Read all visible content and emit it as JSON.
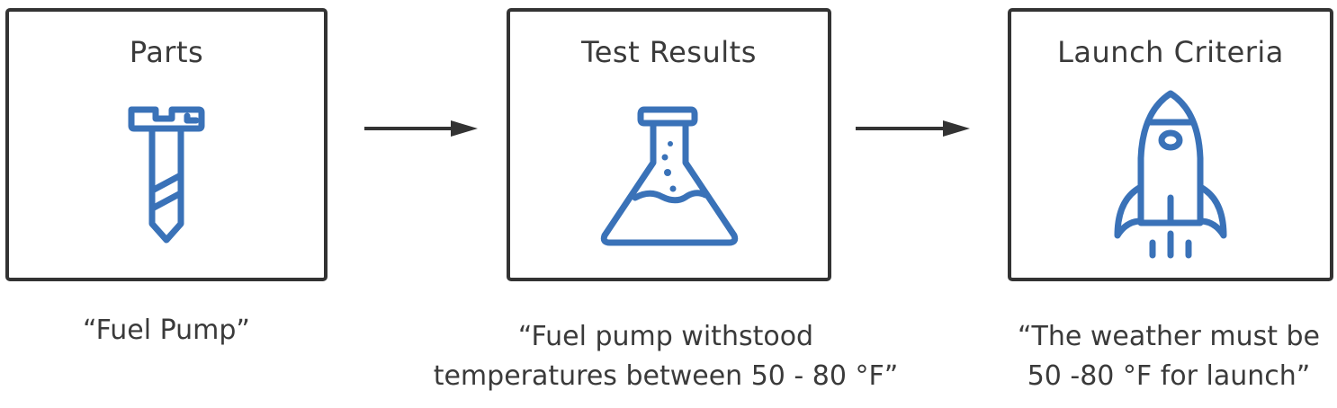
{
  "colors": {
    "icon_blue": "#3a72b8",
    "border": "#333333",
    "text": "#3a3a3a"
  },
  "stages": [
    {
      "title": "Parts",
      "icon": "bolt-screw-icon",
      "caption_lines": [
        "“Fuel Pump”"
      ]
    },
    {
      "title": "Test Results",
      "icon": "flask-icon",
      "caption_lines": [
        "“Fuel pump withstood",
        "temperatures between 50 - 80 °F”"
      ]
    },
    {
      "title": "Launch  Criteria",
      "icon": "rocket-icon",
      "caption_lines": [
        "“The weather must be",
        "50 -80 °F for launch”"
      ]
    }
  ],
  "connectors": [
    "arrow-right-icon",
    "arrow-right-icon"
  ]
}
